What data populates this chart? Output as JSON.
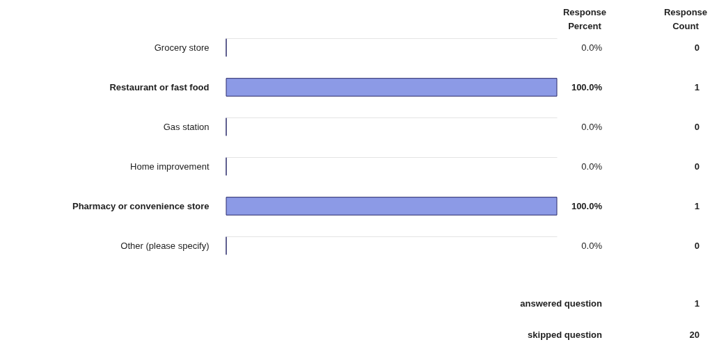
{
  "chart_data": {
    "type": "bar",
    "orientation": "horizontal",
    "categories": [
      "Grocery store",
      "Restaurant or fast food",
      "Gas station",
      "Home improvement",
      "Pharmacy or convenience store",
      "Other (please specify)"
    ],
    "values": [
      0,
      100,
      0,
      0,
      100,
      0
    ],
    "value_labels": [
      "0.0%",
      "100.0%",
      "0.0%",
      "0.0%",
      "100.0%",
      "0.0%"
    ],
    "color": "#8c9ae6",
    "tick_labels": "y",
    "grid": "y",
    "annotations": [
      "Response Percent",
      "Response Count",
      "answered question",
      "1",
      "skipped question",
      "20",
      "0",
      "1",
      "0",
      "0",
      "1",
      "0"
    ]
  }
}
